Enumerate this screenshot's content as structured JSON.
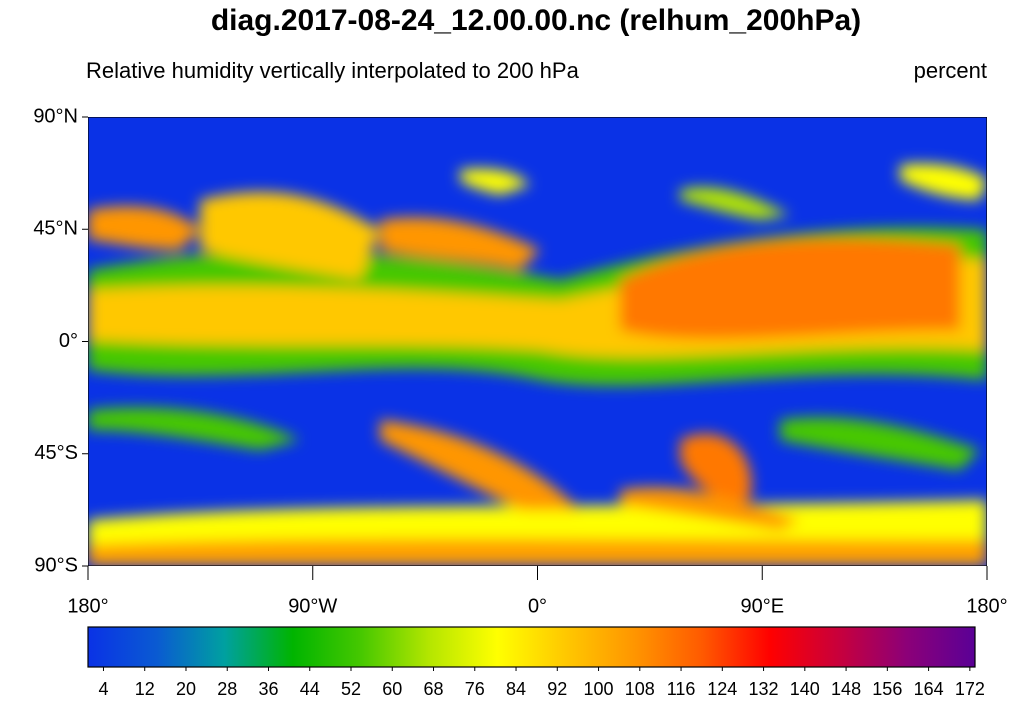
{
  "chart_data": {
    "type": "map",
    "title": "diag.2017-08-24_12.00.00.nc (relhum_200hPa)",
    "subtitle": "Relative humidity vertically interpolated to 200 hPa",
    "units": "percent",
    "xlim": [
      -180,
      180
    ],
    "ylim": [
      -90,
      90
    ],
    "xticks": [
      {
        "value": -180,
        "label": "180°"
      },
      {
        "value": -90,
        "label": "90°W"
      },
      {
        "value": 0,
        "label": "0°"
      },
      {
        "value": 90,
        "label": "90°E"
      },
      {
        "value": 180,
        "label": "180°"
      }
    ],
    "yticks": [
      {
        "value": 90,
        "label": "90°N"
      },
      {
        "value": 45,
        "label": "45°N"
      },
      {
        "value": 0,
        "label": "0°"
      },
      {
        "value": -45,
        "label": "45°S"
      },
      {
        "value": -90,
        "label": "90°S"
      }
    ],
    "colorbar": {
      "lim": [
        1,
        173
      ],
      "ticks": [
        4,
        12,
        20,
        28,
        36,
        44,
        52,
        60,
        68,
        76,
        84,
        92,
        100,
        108,
        116,
        124,
        132,
        140,
        148,
        156,
        164,
        172
      ],
      "colors": [
        "#0a32e6",
        "#0a5ad2",
        "#00a0a0",
        "#00b400",
        "#46c800",
        "#b4e600",
        "#ffff00",
        "#ffc800",
        "#ff9600",
        "#ff5a00",
        "#ff0000",
        "#c8003c",
        "#8c0078",
        "#5a0096"
      ]
    }
  }
}
